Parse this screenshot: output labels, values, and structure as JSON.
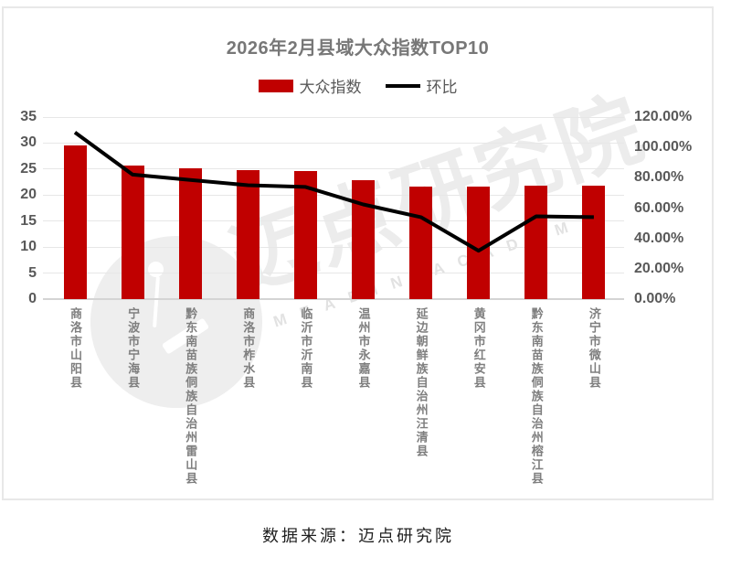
{
  "title": "2026年2月县域大众指数TOP10",
  "legend": [
    {
      "label": "大众指数",
      "type": "bar",
      "color": "#c00000"
    },
    {
      "label": "环比",
      "type": "line",
      "color": "#000000"
    }
  ],
  "footer": {
    "source_text": "数据来源：迈点研究院"
  },
  "watermark": {
    "brand_text": "迈点研究院",
    "brand_letters": "MEADIN ACADEMY",
    "logo": "meadin-pin-in-circle"
  },
  "colors": {
    "bar": "#c00000",
    "line": "#000000",
    "axis_text": "#595959",
    "category_text": "#7f7f7f",
    "title_text": "#777777",
    "gridline": "#e7e7e7"
  },
  "chart_data": {
    "type": "bar",
    "combo": "bar+line",
    "title": "2026年2月县域大众指数TOP10",
    "categories": [
      "商洛市山阳县",
      "宁波市宁海县",
      "黔东南苗族侗族自治州雷山县",
      "商洛市柞水县",
      "临沂市沂南县",
      "温州市永嘉县",
      "延边朝鲜族自治州汪清县",
      "黄冈市红安县",
      "黔东南苗族侗族自治州榕江县",
      "济宁市微山县"
    ],
    "series": [
      {
        "name": "大众指数",
        "type": "bar",
        "axis": "left",
        "color": "#c00000",
        "values": [
          29.6,
          25.7,
          25.2,
          24.8,
          24.6,
          22.9,
          21.7,
          21.6,
          21.8,
          21.8
        ]
      },
      {
        "name": "环比",
        "type": "line",
        "axis": "right",
        "color": "#000000",
        "unit": "%",
        "values": [
          109.9,
          82.1,
          78.5,
          75.1,
          73.9,
          62.4,
          54.0,
          31.9,
          54.6,
          54.0
        ]
      }
    ],
    "left_axis": {
      "min": 0,
      "max": 35,
      "step": 5,
      "ticks": [
        35,
        30,
        25,
        20,
        15,
        10,
        5,
        0
      ]
    },
    "right_axis": {
      "min": 0,
      "max": 120,
      "step": 20,
      "tick_labels": [
        "120.00%",
        "100.00%",
        "80.00%",
        "60.00%",
        "40.00%",
        "20.00%",
        "0.00%"
      ]
    },
    "grid": true,
    "legend_position": "top"
  }
}
